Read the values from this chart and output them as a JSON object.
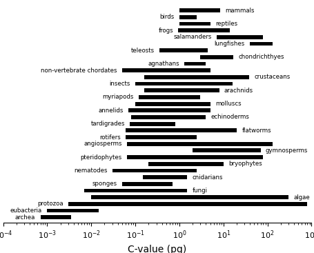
{
  "xlabel": "C-value (pg)",
  "background_color": "#ffffff",
  "bars": [
    {
      "label": "mammals",
      "label_side": "right",
      "xmin": 1.0,
      "xmax": 8.4,
      "y": 31
    },
    {
      "label": "birds",
      "label_side": "left",
      "xmin": 1.0,
      "xmax": 2.5,
      "y": 30
    },
    {
      "label": "reptiles",
      "label_side": "right",
      "xmin": 1.0,
      "xmax": 5.0,
      "y": 29
    },
    {
      "label": "frogs",
      "label_side": "left",
      "xmin": 0.95,
      "xmax": 14.0,
      "y": 28
    },
    {
      "label": "salamanders",
      "label_side": "left",
      "xmin": 7.0,
      "xmax": 80.0,
      "y": 27
    },
    {
      "label": "lungfishes",
      "label_side": "left",
      "xmin": 40.0,
      "xmax": 130.0,
      "y": 26
    },
    {
      "label": "teleosts",
      "label_side": "left",
      "xmin": 0.35,
      "xmax": 4.4,
      "y": 25
    },
    {
      "label": "chondrichthyes",
      "label_side": "right",
      "xmin": 3.0,
      "xmax": 17.0,
      "y": 24
    },
    {
      "label": "agnathans",
      "label_side": "left",
      "xmin": 1.3,
      "xmax": 4.0,
      "y": 23
    },
    {
      "label": "non-vertebrate chordates",
      "label_side": "left",
      "xmin": 0.05,
      "xmax": 5.0,
      "y": 22
    },
    {
      "label": "crustaceans",
      "label_side": "right",
      "xmin": 0.16,
      "xmax": 38.0,
      "y": 21
    },
    {
      "label": "insects",
      "label_side": "left",
      "xmin": 0.1,
      "xmax": 16.0,
      "y": 20
    },
    {
      "label": "arachnids",
      "label_side": "right",
      "xmin": 0.16,
      "xmax": 8.0,
      "y": 19
    },
    {
      "label": "myriapods",
      "label_side": "left",
      "xmin": 0.12,
      "xmax": 3.0,
      "y": 18
    },
    {
      "label": "molluscs",
      "label_side": "right",
      "xmin": 0.1,
      "xmax": 5.0,
      "y": 17
    },
    {
      "label": "annelids",
      "label_side": "left",
      "xmin": 0.07,
      "xmax": 5.0,
      "y": 16
    },
    {
      "label": "echinoderms",
      "label_side": "right",
      "xmin": 0.08,
      "xmax": 4.0,
      "y": 15
    },
    {
      "label": "tardigrades",
      "label_side": "left",
      "xmin": 0.075,
      "xmax": 0.8,
      "y": 14
    },
    {
      "label": "flatworms",
      "label_side": "right",
      "xmin": 0.06,
      "xmax": 20.0,
      "y": 13
    },
    {
      "label": "rotifers",
      "label_side": "left",
      "xmin": 0.06,
      "xmax": 2.5,
      "y": 12
    },
    {
      "label": "angiosperms",
      "label_side": "left",
      "xmin": 0.065,
      "xmax": 130.0,
      "y": 11
    },
    {
      "label": "gymnosperms",
      "label_side": "right",
      "xmin": 2.0,
      "xmax": 70.0,
      "y": 10
    },
    {
      "label": "pteridophytes",
      "label_side": "left",
      "xmin": 0.065,
      "xmax": 80.0,
      "y": 9
    },
    {
      "label": "bryophytes",
      "label_side": "right",
      "xmin": 0.2,
      "xmax": 10.0,
      "y": 8
    },
    {
      "label": "nematodes",
      "label_side": "left",
      "xmin": 0.03,
      "xmax": 2.5,
      "y": 7
    },
    {
      "label": "cnidarians",
      "label_side": "right",
      "xmin": 0.15,
      "xmax": 1.5,
      "y": 6
    },
    {
      "label": "sponges",
      "label_side": "left",
      "xmin": 0.05,
      "xmax": 0.7,
      "y": 5
    },
    {
      "label": "fungi",
      "label_side": "right",
      "xmin": 0.007,
      "xmax": 1.5,
      "y": 4
    },
    {
      "label": "algae",
      "label_side": "right",
      "xmin": 0.01,
      "xmax": 300.0,
      "y": 3
    },
    {
      "label": "protozoa",
      "label_side": "left",
      "xmin": 0.003,
      "xmax": 800.0,
      "y": 2
    },
    {
      "label": "eubacteria",
      "label_side": "left",
      "xmin": 0.001,
      "xmax": 0.015,
      "y": 1
    },
    {
      "label": "archea",
      "label_side": "left",
      "xmin": 0.0007,
      "xmax": 0.0035,
      "y": 0
    }
  ],
  "bar_height": 0.6,
  "bar_color": "#000000",
  "label_fontsize": 6.2,
  "axis_fontsize": 10,
  "axis_tick_fontsize": 8
}
